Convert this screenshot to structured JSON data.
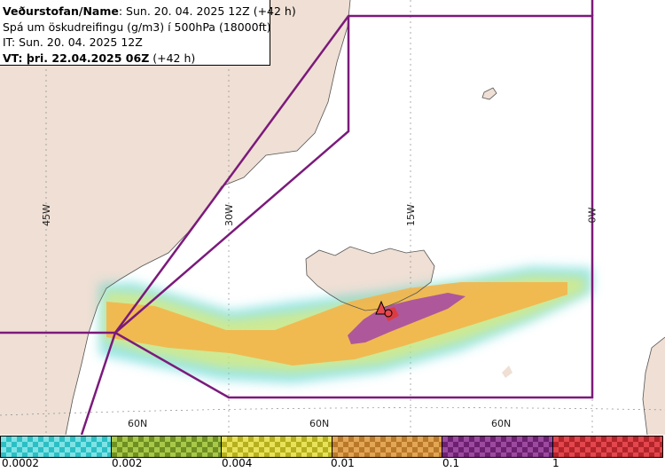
{
  "header": {
    "line1_label": "Veðurstofan/Name",
    "line1_value": ": Sun. 20. 04. 2025 12Z (+42 h)",
    "line2": "Spá um öskudreifingu (g/m3) í 500hPa (18000ft)",
    "line3": "IT: Sun. 20. 04. 2025 12Z",
    "line4_label": "VT: þri. 22.04.2025 06Z",
    "line4_value": " (+42 h)"
  },
  "map": {
    "meridian_labels": [
      "45W",
      "30W",
      "15W",
      "0W"
    ],
    "parallel_labels": [
      "60N",
      "60N",
      "60N"
    ],
    "colors": {
      "land": "#efdfd4",
      "sea": "#ffffff",
      "boundary": "#7b1a7b",
      "coast": "#555555",
      "grid": "#8a8a8a",
      "volcano_marker": "#e5484d"
    },
    "plume_bands": [
      {
        "level": "0.0002",
        "color": "#46d0d3"
      },
      {
        "level": "0.002",
        "color": "#95b93a"
      },
      {
        "level": "0.004",
        "color": "#f2ec5a"
      },
      {
        "level": "0.01",
        "color": "#f6b145"
      },
      {
        "level": "0.1",
        "color": "#a246a8"
      },
      {
        "level": "1",
        "color": "#e03a3a"
      }
    ]
  },
  "legend": {
    "segments": [
      {
        "c1": "#2bbfc4",
        "c2": "#7fe3e6"
      },
      {
        "c1": "#6f8f22",
        "c2": "#a8c84a"
      },
      {
        "c1": "#b6b01e",
        "c2": "#e8e25a"
      },
      {
        "c1": "#b9792a",
        "c2": "#e2a654"
      },
      {
        "c1": "#6d2070",
        "c2": "#9c4aa0"
      },
      {
        "c1": "#b3232a",
        "c2": "#e2474d"
      }
    ],
    "ticks": [
      "0.0002",
      "0.002",
      "0.004",
      "0.01",
      "0.1",
      "1"
    ]
  }
}
